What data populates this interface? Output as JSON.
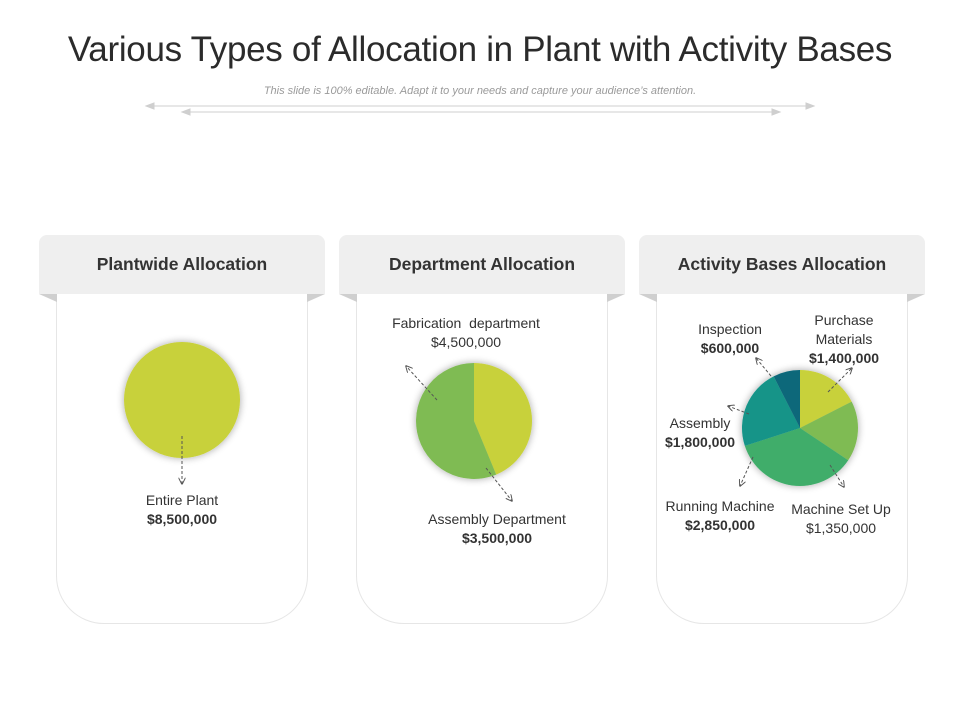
{
  "title": "Various Types of Allocation in Plant with Activity Bases",
  "subtitle": "This slide is 100% editable. Adapt it to your needs and capture your audience’s attention.",
  "colors": {
    "lime": "#c8d13a",
    "green": "#7fbb52",
    "medium_green": "#3fad6a",
    "teal": "#129488",
    "dark_teal": "#11687a"
  },
  "panels": [
    {
      "header": "Plantwide Allocation"
    },
    {
      "header": "Department Allocation"
    },
    {
      "header": "Activity Bases Allocation"
    }
  ],
  "chart_data": [
    {
      "type": "pie",
      "title": "Plantwide Allocation",
      "slices": [
        {
          "label": "Entire Plant",
          "amount": "$8,500,000",
          "value": 8500000
        }
      ]
    },
    {
      "type": "pie",
      "title": "Department Allocation",
      "slices": [
        {
          "label": "Assembly Department",
          "amount": "$3,500,000",
          "value": 3500000
        },
        {
          "label": "Fabrication  department",
          "amount": "$4,500,000",
          "value": 4500000
        }
      ]
    },
    {
      "type": "pie",
      "title": "Activity Bases Allocation",
      "slices": [
        {
          "label": "Purchase Materials",
          "amount": "$1,400,000",
          "value": 1400000
        },
        {
          "label": "Machine Set Up",
          "amount": "$1,350,000",
          "value": 1350000
        },
        {
          "label": "Running Machine",
          "amount": "$2,850,000",
          "value": 2850000
        },
        {
          "label": "Assembly",
          "amount": "$1,800,000",
          "value": 1800000
        },
        {
          "label": "Inspection",
          "amount": "$600,000",
          "value": 600000
        }
      ]
    }
  ]
}
